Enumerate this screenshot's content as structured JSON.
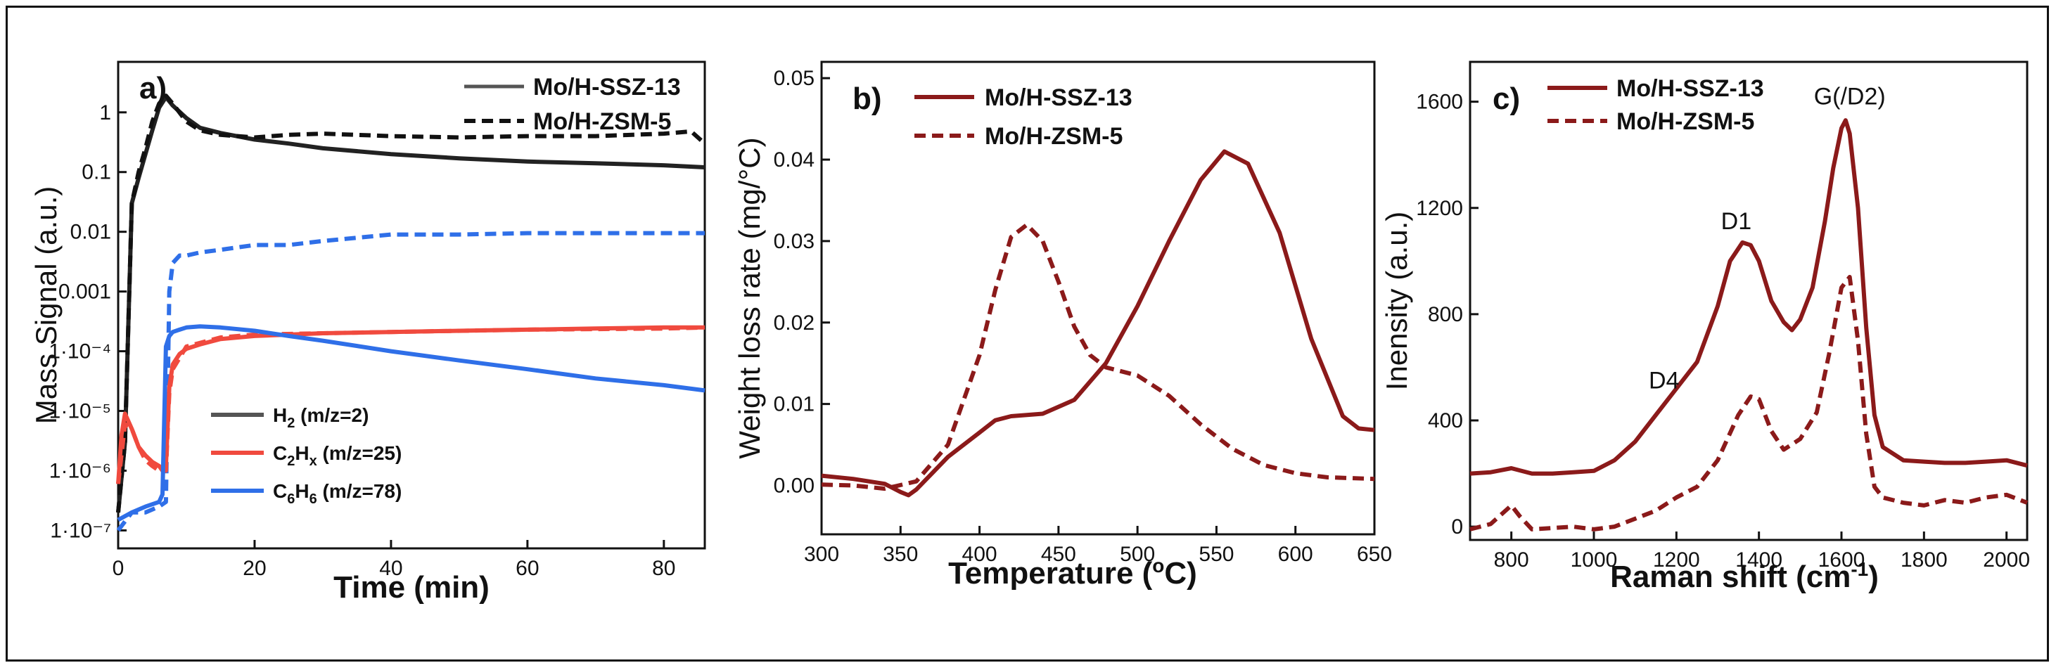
{
  "colors": {
    "black": "#222222",
    "red": "#f04a3e",
    "blue": "#2f6fe8",
    "maroon": "#8b1a1a"
  },
  "chart_data": [
    {
      "type": "line",
      "panel_label": "a)",
      "xlabel": "Time (min)",
      "ylabel": "Mass Signal (a.u.)",
      "xlim": [
        0,
        86
      ],
      "xticks": [
        0,
        20,
        40,
        60,
        80
      ],
      "xtick_labels": [
        "0",
        "20",
        "40",
        "60",
        "80"
      ],
      "yscale": "log",
      "ylim": [
        5e-08,
        7
      ],
      "yticks": [
        1e-07,
        1e-06,
        1e-05,
        0.0001,
        0.001,
        0.01,
        0.1,
        1
      ],
      "ytick_labels": [
        "1·10⁻⁷",
        "1·10⁻⁶",
        "1·10⁻⁵",
        "1·10⁻⁴",
        "0.001",
        "0.01",
        "0.1",
        "1"
      ],
      "legend_materials": [
        {
          "label": "Mo/H-SSZ-13",
          "style": "solid"
        },
        {
          "label": "Mo/H-ZSM-5",
          "style": "dashed"
        }
      ],
      "legend_species": [
        {
          "label_main": "H",
          "label_sub": "2",
          "label_tail": " (m/z=2)",
          "color": "#222222"
        },
        {
          "label_main": "C",
          "label_sub": "2",
          "label_mid": "H",
          "label_sub2": "x",
          "label_tail": " (m/z=25)",
          "color": "#f04a3e"
        },
        {
          "label_main": "C",
          "label_sub": "6",
          "label_mid": "H",
          "label_sub2": "6",
          "label_tail": " (m/z=78)",
          "color": "#2f6fe8"
        }
      ],
      "series": [
        {
          "name": "H2 Mo/H-SSZ-13",
          "species": "H2",
          "style": "solid",
          "color": "#222222",
          "x": [
            0,
            1,
            2,
            3,
            4,
            5,
            6,
            7,
            8,
            10,
            12,
            15,
            20,
            25,
            30,
            40,
            50,
            60,
            70,
            80,
            86
          ],
          "y": [
            2e-07,
            3e-06,
            0.03,
            0.08,
            0.2,
            0.5,
            1.2,
            1.8,
            1.3,
            0.8,
            0.55,
            0.45,
            0.35,
            0.3,
            0.25,
            0.2,
            0.17,
            0.15,
            0.14,
            0.13,
            0.12
          ]
        },
        {
          "name": "H2 Mo/H-ZSM-5",
          "species": "H2",
          "style": "dashed",
          "color": "#111111",
          "x": [
            0,
            1,
            2,
            3,
            4,
            5,
            6,
            7,
            8,
            10,
            12,
            15,
            20,
            25,
            30,
            40,
            50,
            60,
            70,
            80,
            84,
            86
          ],
          "y": [
            2e-07,
            3e-06,
            0.03,
            0.1,
            0.25,
            0.7,
            1.4,
            1.9,
            1.4,
            0.7,
            0.5,
            0.42,
            0.38,
            0.42,
            0.44,
            0.4,
            0.38,
            0.4,
            0.4,
            0.44,
            0.48,
            0.3
          ]
        },
        {
          "name": "C6H6 Mo/H-ZSM-5",
          "species": "C6H6",
          "style": "dashed",
          "color": "#2f6fe8",
          "x": [
            0,
            2,
            4,
            6,
            7,
            7.5,
            8,
            9,
            10,
            12,
            15,
            20,
            25,
            30,
            40,
            50,
            60,
            70,
            80,
            86
          ],
          "y": [
            1e-07,
            2e-07,
            2e-07,
            2.5e-07,
            3e-07,
            0.001,
            0.003,
            0.004,
            0.004,
            0.0045,
            0.005,
            0.006,
            0.006,
            0.007,
            0.009,
            0.009,
            0.0095,
            0.0095,
            0.0095,
            0.0095
          ]
        },
        {
          "name": "C2Hx Mo/H-SSZ-13",
          "species": "C2Hx",
          "style": "solid",
          "color": "#f04a3e",
          "x": [
            0,
            0.5,
            1,
            2,
            3,
            4,
            5,
            6,
            6.5,
            7,
            7.5,
            8,
            9,
            10,
            12,
            15,
            20,
            30,
            40,
            50,
            60,
            70,
            80,
            86
          ],
          "y": [
            6e-07,
            4e-06,
            9e-06,
            5e-06,
            2.5e-06,
            1.8e-06,
            1.4e-06,
            1.2e-06,
            1e-06,
            1.2e-06,
            2.5e-05,
            6e-05,
            9e-05,
            0.00011,
            0.00013,
            0.00016,
            0.00018,
            0.0002,
            0.00021,
            0.00022,
            0.00023,
            0.00024,
            0.00025,
            0.00025
          ]
        },
        {
          "name": "C2Hx Mo/H-ZSM-5",
          "species": "C2Hx",
          "style": "dashed",
          "color": "#f04a3e",
          "x": [
            0,
            1,
            2,
            3,
            4,
            5,
            6,
            7,
            7.5,
            8,
            10,
            15,
            20,
            30,
            40,
            60,
            80,
            86
          ],
          "y": [
            6e-07,
            6e-06,
            5e-06,
            2.5e-06,
            1.5e-06,
            1.2e-06,
            1e-06,
            1e-06,
            2e-05,
            5e-05,
            0.00012,
            0.00017,
            0.00019,
            0.0002,
            0.00021,
            0.00023,
            0.00024,
            0.00025
          ]
        },
        {
          "name": "C6H6 Mo/H-SSZ-13",
          "species": "C6H6",
          "style": "solid",
          "color": "#2f6fe8",
          "x": [
            0,
            2,
            4,
            6,
            6.5,
            7,
            7.5,
            8,
            9,
            10,
            12,
            15,
            20,
            25,
            30,
            40,
            50,
            60,
            70,
            80,
            86
          ],
          "y": [
            1.5e-07,
            2e-07,
            2.5e-07,
            3e-07,
            4e-07,
            0.00012,
            0.00018,
            0.00021,
            0.00023,
            0.00025,
            0.00026,
            0.00025,
            0.00022,
            0.00018,
            0.00015,
            0.0001,
            7e-05,
            5e-05,
            3.5e-05,
            2.7e-05,
            2.2e-05
          ]
        }
      ]
    },
    {
      "type": "line",
      "panel_label": "b)",
      "xlabel_main": "Temperature (",
      "xlabel_sup": "o",
      "xlabel_tail": "C)",
      "ylabel": "Weight loss rate (mg/°C)",
      "xlim": [
        300,
        650
      ],
      "ylim": [
        -0.006,
        0.052
      ],
      "xticks": [
        300,
        350,
        400,
        450,
        500,
        550,
        600,
        650
      ],
      "xtick_labels": [
        "300",
        "350",
        "400",
        "450",
        "500",
        "550",
        "600",
        "650"
      ],
      "yticks": [
        0.0,
        0.01,
        0.02,
        0.03,
        0.04,
        0.05
      ],
      "ytick_labels": [
        "0.00",
        "0.01",
        "0.02",
        "0.03",
        "0.04",
        "0.05"
      ],
      "series": [
        {
          "name": "Mo/H-SSZ-13",
          "style": "solid",
          "color": "#8b1a1a",
          "x": [
            300,
            320,
            340,
            350,
            355,
            360,
            370,
            380,
            400,
            410,
            420,
            440,
            460,
            480,
            500,
            520,
            540,
            555,
            570,
            590,
            610,
            630,
            640,
            650
          ],
          "y": [
            0.0012,
            0.0008,
            0.0002,
            -0.0008,
            -0.0012,
            -0.0005,
            0.0015,
            0.0035,
            0.0065,
            0.008,
            0.0085,
            0.0088,
            0.0105,
            0.015,
            0.022,
            0.03,
            0.0375,
            0.041,
            0.0395,
            0.031,
            0.018,
            0.0085,
            0.007,
            0.0068
          ]
        },
        {
          "name": "Mo/H-ZSM-5",
          "style": "dashed",
          "color": "#8b1a1a",
          "x": [
            300,
            320,
            340,
            360,
            380,
            400,
            410,
            420,
            430,
            440,
            450,
            460,
            470,
            480,
            500,
            520,
            540,
            560,
            580,
            600,
            620,
            650
          ],
          "y": [
            0.0001,
            0.0,
            -0.0004,
            0.0005,
            0.005,
            0.016,
            0.024,
            0.0305,
            0.032,
            0.03,
            0.025,
            0.0195,
            0.016,
            0.0145,
            0.0135,
            0.011,
            0.0075,
            0.0045,
            0.0025,
            0.0015,
            0.001,
            0.0008
          ]
        }
      ]
    },
    {
      "type": "line",
      "panel_label": "c)",
      "xlabel_main": "Raman shift (cm",
      "xlabel_sup": "-1",
      "xlabel_tail": ")",
      "ylabel": "Inensity (a.u.)",
      "xlim": [
        700,
        2050
      ],
      "ylim": [
        -50,
        1750
      ],
      "xticks": [
        800,
        1000,
        1200,
        1400,
        1600,
        1800,
        2000
      ],
      "xtick_labels": [
        "800",
        "1000",
        "1200",
        "1400",
        "1600",
        "1800",
        "2000"
      ],
      "yticks": [
        0,
        400,
        800,
        1200,
        1600
      ],
      "ytick_labels": [
        "0",
        "400",
        "800",
        "1200",
        "1600"
      ],
      "annotations": [
        {
          "text": "D4",
          "x": 1170,
          "y": 520
        },
        {
          "text": "D1",
          "x": 1345,
          "y": 1120
        },
        {
          "text": "G(/D2)",
          "x": 1620,
          "y": 1590
        }
      ],
      "series": [
        {
          "name": "Mo/H-SSZ-13",
          "style": "solid",
          "color": "#8b1a1a",
          "x": [
            700,
            750,
            800,
            850,
            900,
            950,
            1000,
            1050,
            1100,
            1150,
            1200,
            1250,
            1300,
            1330,
            1360,
            1380,
            1400,
            1430,
            1460,
            1480,
            1500,
            1530,
            1560,
            1580,
            1600,
            1610,
            1620,
            1640,
            1660,
            1680,
            1700,
            1750,
            1800,
            1850,
            1900,
            1950,
            2000,
            2050
          ],
          "y": [
            200,
            205,
            220,
            200,
            200,
            205,
            210,
            250,
            320,
            420,
            520,
            620,
            830,
            1000,
            1070,
            1060,
            1000,
            850,
            770,
            740,
            780,
            900,
            1150,
            1350,
            1500,
            1530,
            1480,
            1200,
            750,
            420,
            300,
            250,
            245,
            240,
            240,
            245,
            250,
            230
          ]
        },
        {
          "name": "Mo/H-ZSM-5",
          "style": "dashed",
          "color": "#8b1a1a",
          "x": [
            700,
            750,
            800,
            820,
            850,
            900,
            950,
            1000,
            1050,
            1100,
            1150,
            1200,
            1250,
            1300,
            1350,
            1380,
            1400,
            1430,
            1460,
            1500,
            1540,
            1570,
            1600,
            1620,
            1640,
            1660,
            1680,
            1700,
            1750,
            1800,
            1850,
            1900,
            1950,
            2000,
            2050
          ],
          "y": [
            -10,
            10,
            80,
            40,
            -10,
            -5,
            0,
            -10,
            0,
            30,
            60,
            110,
            150,
            250,
            420,
            490,
            480,
            360,
            290,
            330,
            430,
            650,
            900,
            940,
            700,
            350,
            150,
            110,
            90,
            80,
            100,
            90,
            110,
            120,
            90
          ]
        }
      ]
    }
  ],
  "legend_b": [
    {
      "label": "Mo/H-SSZ-13",
      "style": "solid"
    },
    {
      "label": "Mo/H-ZSM-5",
      "style": "dashed"
    }
  ],
  "legend_c": [
    {
      "label": "Mo/H-SSZ-13",
      "style": "solid"
    },
    {
      "label": "Mo/H-ZSM-5",
      "style": "dashed"
    }
  ]
}
